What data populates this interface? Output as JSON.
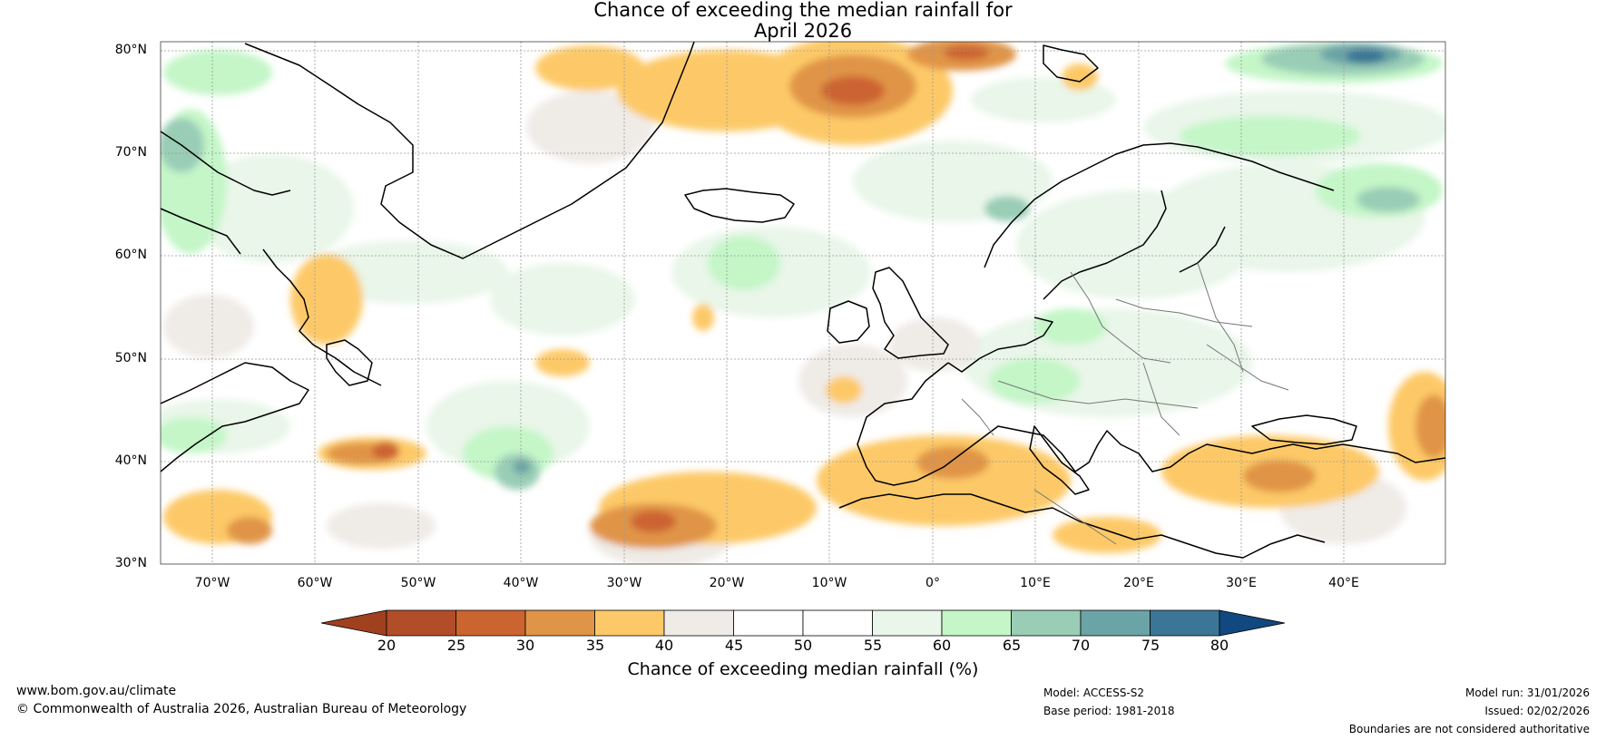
{
  "title": {
    "line1": "Chance of exceeding the median rainfall for",
    "line2": "April 2026"
  },
  "map": {
    "region": "North Atlantic and Europe",
    "lat_range": [
      30,
      80
    ],
    "lon_range": [
      -75,
      50
    ],
    "lat_labels": [
      "80°N",
      "70°N",
      "60°N",
      "50°N",
      "40°N",
      "30°N"
    ],
    "lon_labels": [
      "70°W",
      "60°W",
      "50°W",
      "40°W",
      "30°W",
      "20°W",
      "10°W",
      "0°",
      "10°E",
      "20°E",
      "30°E",
      "40°E"
    ]
  },
  "colorbar": {
    "ticks": [
      "20",
      "25",
      "30",
      "35",
      "40",
      "45",
      "50",
      "55",
      "60",
      "65",
      "70",
      "75",
      "80"
    ],
    "colors": [
      "#a0401f",
      "#b24d29",
      "#cc6430",
      "#e09447",
      "#fdc968",
      "#efebe7",
      "#ffffff",
      "#ffffff",
      "#e9f6e9",
      "#c4f6c8",
      "#9acdb6",
      "#6ba4a6",
      "#3b7696",
      "#10487f"
    ],
    "title": "Chance of exceeding median rainfall (%)"
  },
  "footer": {
    "url": "www.bom.gov.au/climate",
    "copyright": "© Commonwealth of Australia 2026, Australian Bureau of Meteorology",
    "model": "Model: ACCESS-S2",
    "base_period": "Base period: 1981-2018",
    "model_run": "Model run: 31/01/2026",
    "issued": "Issued: 02/02/2026",
    "disclaimer": "Boundaries are not considered authoritative"
  }
}
